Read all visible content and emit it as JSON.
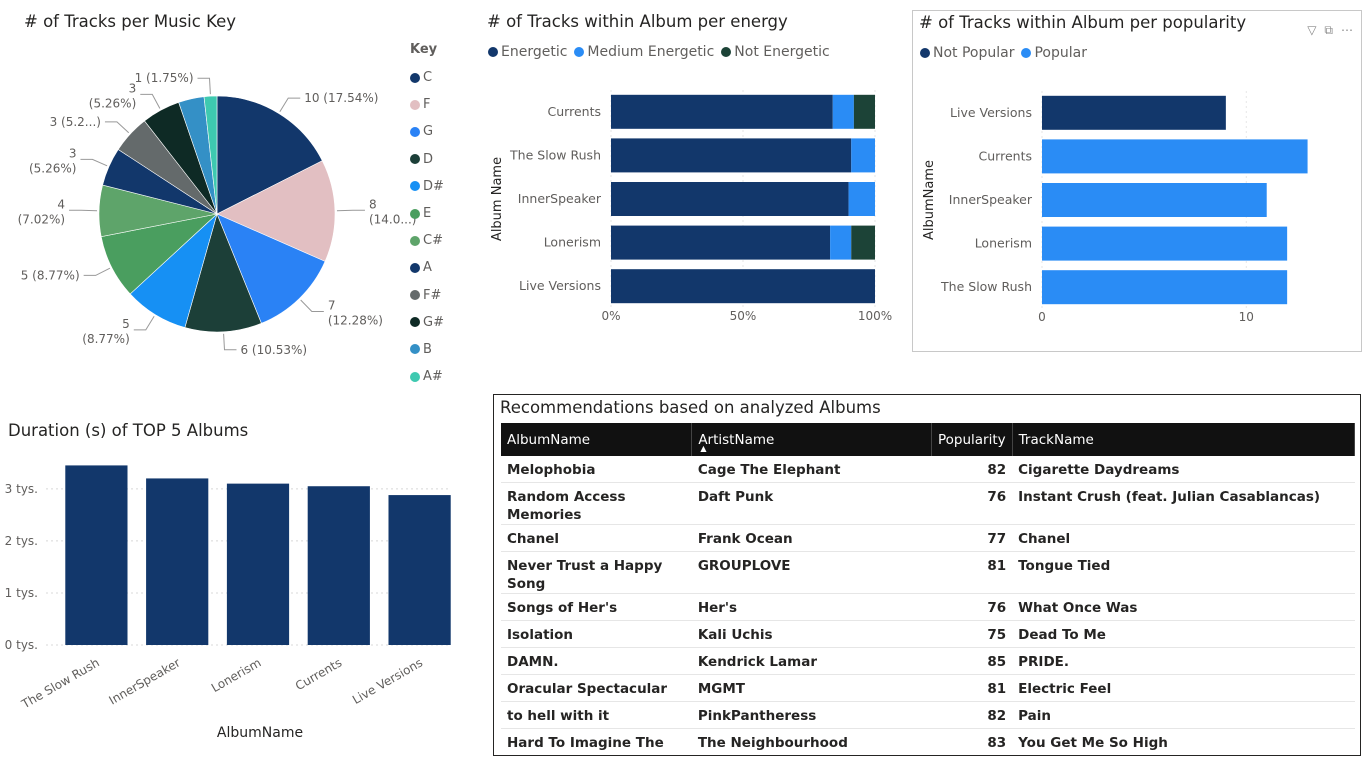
{
  "pie": {
    "title": "# of Tracks per Music Key",
    "legend_title": "Key"
  },
  "energy": {
    "title": "# of Tracks within Album per energy",
    "legend": [
      {
        "label": "Energetic",
        "color": "#12376b"
      },
      {
        "label": "Medium Energetic",
        "color": "#2a8cf5"
      },
      {
        "label": "Not Energetic",
        "color": "#1c4337"
      }
    ]
  },
  "popularity": {
    "title": "# of Tracks within Album per popularity",
    "legend": [
      {
        "label": "Not Popular",
        "color": "#12376b"
      },
      {
        "label": "Popular",
        "color": "#2a8cf5"
      }
    ]
  },
  "duration": {
    "title": "Duration (s) of TOP 5 Albums"
  },
  "recs": {
    "title": "Recommendations based on analyzed Albums",
    "headers": [
      "AlbumName",
      "ArtistName",
      "Popularity",
      "TrackName"
    ],
    "rows": [
      [
        "Melophobia",
        "Cage The Elephant",
        "82",
        "Cigarette Daydreams"
      ],
      [
        "Random Access Memories",
        "Daft Punk",
        "76",
        "Instant Crush (feat. Julian Casablancas)"
      ],
      [
        "Chanel",
        "Frank Ocean",
        "77",
        "Chanel"
      ],
      [
        "Never Trust a Happy Song",
        "GROUPLOVE",
        "81",
        "Tongue Tied"
      ],
      [
        "Songs of Her's",
        "Her's",
        "76",
        "What Once Was"
      ],
      [
        "Isolation",
        "Kali Uchis",
        "75",
        "Dead To Me"
      ],
      [
        "DAMN.",
        "Kendrick Lamar",
        "85",
        "PRIDE."
      ],
      [
        "Oracular Spectacular",
        "MGMT",
        "81",
        "Electric Feel"
      ],
      [
        "to hell with it",
        "PinkPantheress",
        "82",
        "Pain"
      ],
      [
        "Hard To Imagine The Neighbourhood Ever Changing",
        "The Neighbourhood",
        "83",
        "You Get Me So High"
      ]
    ]
  },
  "chart_data": [
    {
      "type": "pie",
      "title": "# of Tracks per Music Key",
      "legend_title": "Key",
      "legend_position": "right",
      "slices": [
        {
          "label": "C",
          "value": 10,
          "display": "10 (17.54%)",
          "color": "#12376b"
        },
        {
          "label": "F",
          "value": 8,
          "display": "8 (14.0...)",
          "color": "#e2bfc2"
        },
        {
          "label": "G",
          "value": 7,
          "display": "7 (12.28%)",
          "color": "#2a82f5"
        },
        {
          "label": "D",
          "value": 6,
          "display": "6 (10.53%)",
          "color": "#1c3f38"
        },
        {
          "label": "D#",
          "value": 5,
          "display": "5 (8.77%)",
          "color": "#1690f4"
        },
        {
          "label": "E",
          "value": 5,
          "display": "5 (8.77%)",
          "color": "#4a9e5f"
        },
        {
          "label": "C#",
          "value": 4,
          "display": "4 (7.02%)",
          "color": "#5ea46a"
        },
        {
          "label": "A",
          "value": 3,
          "display": "3 (5.26%)",
          "color": "#12376b"
        },
        {
          "label": "F#",
          "value": 3,
          "display": "3 (5.2...)",
          "color": "#646a6b"
        },
        {
          "label": "G#",
          "value": 3,
          "display": "3 (5.26%)",
          "color": "#0e2a25"
        },
        {
          "label": "B",
          "value": 2,
          "display": "",
          "color": "#3490c6"
        },
        {
          "label": "A#",
          "value": 1,
          "display": "1 (1.75%)",
          "color": "#3ec9b0"
        }
      ]
    },
    {
      "type": "bar",
      "orientation": "horizontal",
      "stacked": "100%",
      "title": "# of Tracks within Album per energy",
      "ylabel": "Album Name",
      "categories": [
        "Currents",
        "The Slow Rush",
        "InnerSpeaker",
        "Lonerism",
        "Live Versions"
      ],
      "series": [
        {
          "name": "Energetic",
          "color": "#12376b",
          "values": [
            84,
            91,
            90,
            83,
            100
          ]
        },
        {
          "name": "Medium Energetic",
          "color": "#2a8cf5",
          "values": [
            8,
            9,
            10,
            8,
            0
          ]
        },
        {
          "name": "Not Energetic",
          "color": "#1c4337",
          "values": [
            8,
            0,
            0,
            9,
            0
          ]
        }
      ],
      "x_ticks": [
        "0%",
        "50%",
        "100%"
      ],
      "xlim": [
        0,
        100
      ],
      "grid": true,
      "legend_position": "top-left"
    },
    {
      "type": "bar",
      "orientation": "horizontal",
      "title": "# of Tracks within Album per popularity",
      "ylabel": "AlbumName",
      "categories": [
        "Live Versions",
        "Currents",
        "InnerSpeaker",
        "Lonerism",
        "The Slow Rush"
      ],
      "series": [
        {
          "name": "Not Popular",
          "color": "#12376b",
          "values": [
            9,
            0,
            0,
            0,
            0
          ]
        },
        {
          "name": "Popular",
          "color": "#2a8cf5",
          "values": [
            0,
            13,
            11,
            12,
            12
          ]
        }
      ],
      "x_ticks": [
        "0",
        "10"
      ],
      "xlim": [
        0,
        14
      ],
      "grid": true,
      "legend_position": "top-left"
    },
    {
      "type": "bar",
      "title": "Duration (s) of TOP 5 Albums",
      "xlabel": "AlbumName",
      "categories": [
        "The Slow Rush",
        "InnerSpeaker",
        "Lonerism",
        "Currents",
        "Live Versions"
      ],
      "values": [
        3450,
        3200,
        3100,
        3050,
        2880
      ],
      "color": "#12376b",
      "y_ticks": [
        {
          "value": 0,
          "label": "0 tys."
        },
        {
          "value": 1000,
          "label": "1 tys."
        },
        {
          "value": 2000,
          "label": "2 tys."
        },
        {
          "value": 3000,
          "label": "3 tys."
        }
      ],
      "ylim": [
        0,
        3650
      ],
      "grid": true
    }
  ]
}
